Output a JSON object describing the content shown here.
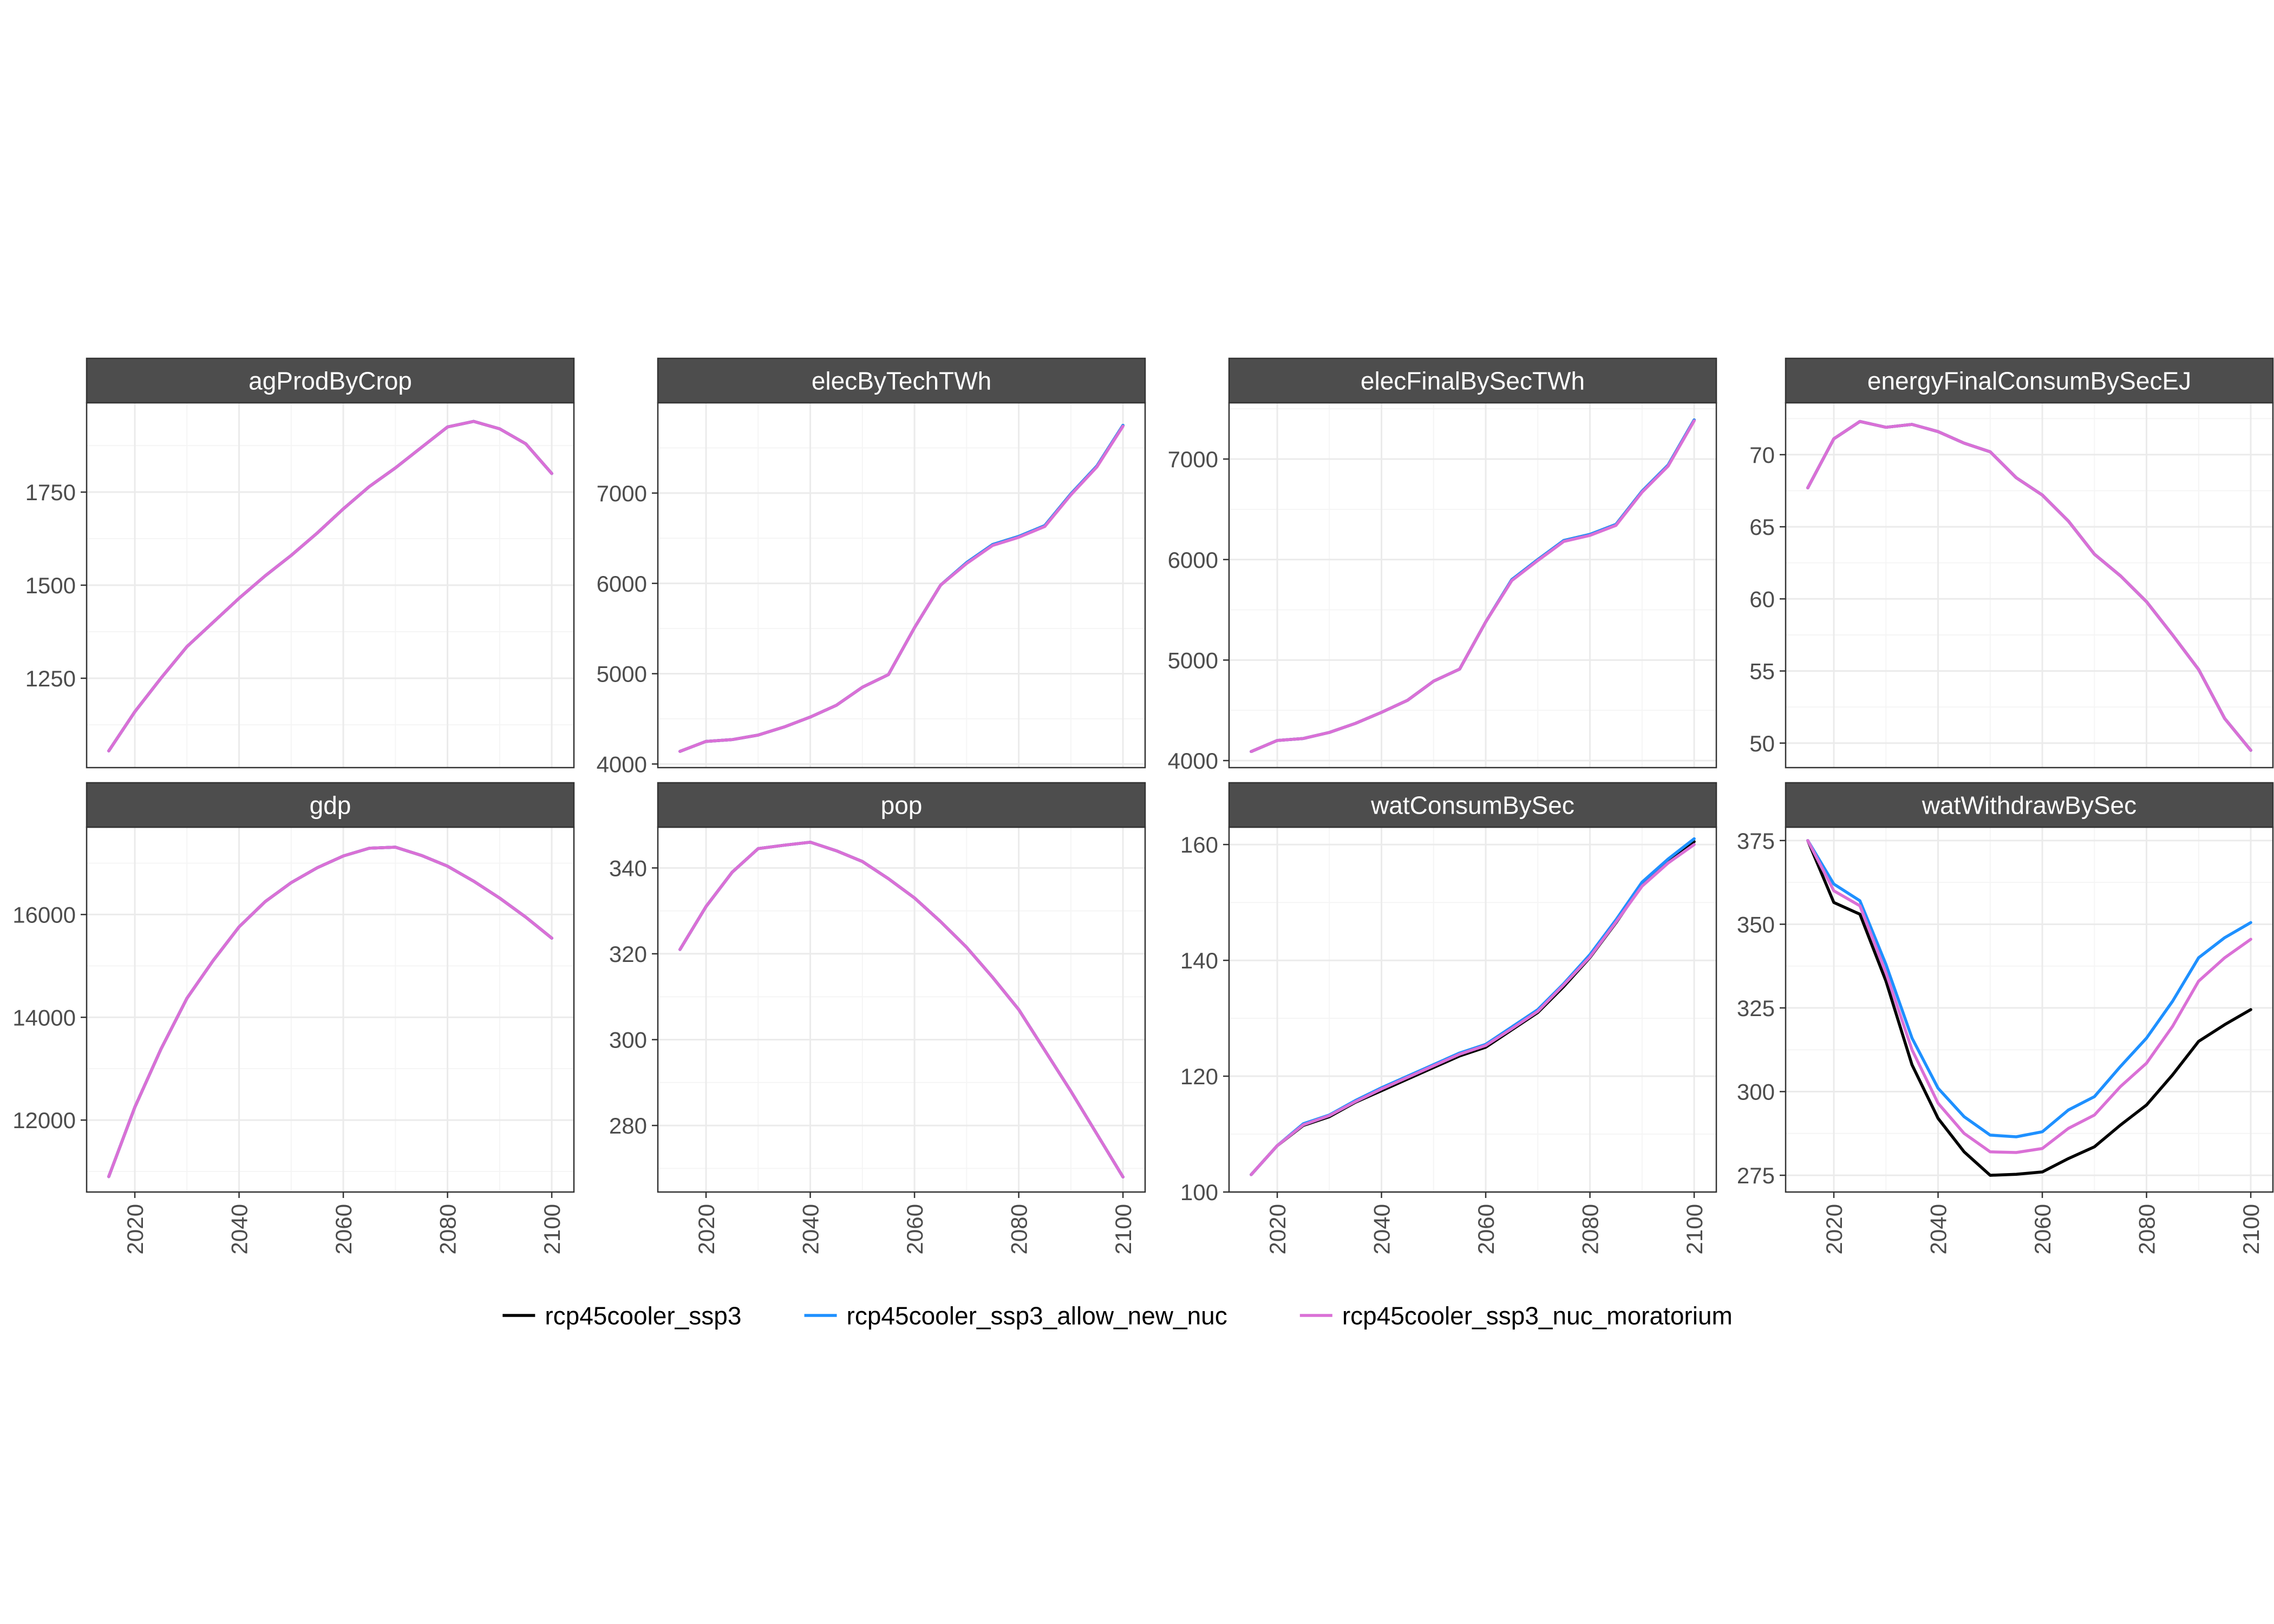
{
  "colors": {
    "strip_bg": "#4d4d4d",
    "strip_text": "#ffffff",
    "panel_border": "#333333",
    "grid_major": "#ebebeb",
    "grid_minor": "#f5f5f5",
    "tick_text": "#4d4d4d",
    "legend_text": "#000000"
  },
  "legend": {
    "position": "bottom",
    "items": [
      {
        "label": "rcp45cooler_ssp3",
        "color": "#000000"
      },
      {
        "label": "rcp45cooler_ssp3_allow_new_nuc",
        "color": "#1e90ff"
      },
      {
        "label": "rcp45cooler_ssp3_nuc_moratorium",
        "color": "#da70d6"
      }
    ]
  },
  "chart_data": [
    {
      "type": "line",
      "title": "agProdByCrop",
      "x": [
        2015,
        2020,
        2025,
        2030,
        2035,
        2040,
        2045,
        2050,
        2055,
        2060,
        2065,
        2070,
        2075,
        2080,
        2085,
        2090,
        2095,
        2100
      ],
      "xlim": [
        2010.75,
        2104.25
      ],
      "xticks": [
        2020,
        2040,
        2060,
        2080,
        2100
      ],
      "ylim": [
        1010,
        1990
      ],
      "yticks": [
        1250,
        1500,
        1750
      ],
      "series": [
        {
          "name": "rcp45cooler_ssp3",
          "color": "#000000",
          "values": [
            1055,
            1160,
            1250,
            1335,
            1400,
            1465,
            1525,
            1580,
            1640,
            1705,
            1765,
            1815,
            1870,
            1925,
            1940,
            1920,
            1880,
            1800
          ]
        },
        {
          "name": "rcp45cooler_ssp3_allow_new_nuc",
          "color": "#1e90ff",
          "values": [
            1055,
            1160,
            1250,
            1335,
            1400,
            1465,
            1525,
            1580,
            1640,
            1705,
            1765,
            1815,
            1870,
            1925,
            1940,
            1920,
            1880,
            1800
          ]
        },
        {
          "name": "rcp45cooler_ssp3_nuc_moratorium",
          "color": "#da70d6",
          "values": [
            1055,
            1160,
            1250,
            1335,
            1400,
            1465,
            1525,
            1580,
            1640,
            1705,
            1765,
            1815,
            1870,
            1925,
            1940,
            1920,
            1880,
            1800
          ]
        }
      ]
    },
    {
      "type": "line",
      "title": "elecByTechTWh",
      "x": [
        2015,
        2020,
        2025,
        2030,
        2035,
        2040,
        2045,
        2050,
        2055,
        2060,
        2065,
        2070,
        2075,
        2080,
        2085,
        2090,
        2095,
        2100
      ],
      "xlim": [
        2010.75,
        2104.25
      ],
      "xticks": [
        2020,
        2040,
        2060,
        2080,
        2100
      ],
      "ylim": [
        3960,
        8000
      ],
      "yticks": [
        4000,
        5000,
        6000,
        7000
      ],
      "series": [
        {
          "name": "rcp45cooler_ssp3",
          "color": "#000000",
          "values": [
            4140,
            4250,
            4270,
            4320,
            4410,
            4520,
            4650,
            4850,
            4990,
            5510,
            5980,
            6230,
            6430,
            6520,
            6640,
            6990,
            7300,
            7750
          ]
        },
        {
          "name": "rcp45cooler_ssp3_allow_new_nuc",
          "color": "#1e90ff",
          "values": [
            4140,
            4250,
            4270,
            4320,
            4410,
            4520,
            4650,
            4850,
            4990,
            5510,
            5980,
            6230,
            6430,
            6520,
            6640,
            6990,
            7300,
            7750
          ]
        },
        {
          "name": "rcp45cooler_ssp3_nuc_moratorium",
          "color": "#da70d6",
          "values": [
            4140,
            4250,
            4270,
            4320,
            4410,
            4520,
            4650,
            4850,
            4990,
            5510,
            5980,
            6220,
            6420,
            6510,
            6630,
            6980,
            7290,
            7740
          ]
        }
      ]
    },
    {
      "type": "line",
      "title": "elecFinalBySecTWh",
      "x": [
        2015,
        2020,
        2025,
        2030,
        2035,
        2040,
        2045,
        2050,
        2055,
        2060,
        2065,
        2070,
        2075,
        2080,
        2085,
        2090,
        2095,
        2100
      ],
      "xlim": [
        2010.75,
        2104.25
      ],
      "xticks": [
        2020,
        2040,
        2060,
        2080,
        2100
      ],
      "ylim": [
        3930,
        7560
      ],
      "yticks": [
        4000,
        5000,
        6000,
        7000
      ],
      "series": [
        {
          "name": "rcp45cooler_ssp3",
          "color": "#000000",
          "values": [
            4090,
            4200,
            4220,
            4280,
            4370,
            4480,
            4600,
            4790,
            4910,
            5380,
            5800,
            6000,
            6190,
            6250,
            6350,
            6680,
            6940,
            7390
          ]
        },
        {
          "name": "rcp45cooler_ssp3_allow_new_nuc",
          "color": "#1e90ff",
          "values": [
            4090,
            4200,
            4220,
            4280,
            4370,
            4480,
            4600,
            4790,
            4910,
            5380,
            5800,
            6000,
            6190,
            6250,
            6350,
            6680,
            6940,
            7390
          ]
        },
        {
          "name": "rcp45cooler_ssp3_nuc_moratorium",
          "color": "#da70d6",
          "values": [
            4090,
            4200,
            4220,
            4280,
            4370,
            4480,
            4600,
            4790,
            4910,
            5380,
            5790,
            5990,
            6180,
            6240,
            6340,
            6670,
            6930,
            7380
          ]
        }
      ]
    },
    {
      "type": "line",
      "title": "energyFinalConsumBySecEJ",
      "x": [
        2015,
        2020,
        2025,
        2030,
        2035,
        2040,
        2045,
        2050,
        2055,
        2060,
        2065,
        2070,
        2075,
        2080,
        2085,
        2090,
        2095,
        2100
      ],
      "xlim": [
        2010.75,
        2104.25
      ],
      "xticks": [
        2020,
        2040,
        2060,
        2080,
        2100
      ],
      "ylim": [
        48.3,
        73.6
      ],
      "yticks": [
        50,
        55,
        60,
        65,
        70
      ],
      "series": [
        {
          "name": "rcp45cooler_ssp3",
          "color": "#000000",
          "values": [
            67.7,
            71.1,
            72.3,
            71.9,
            72.1,
            71.6,
            70.8,
            70.2,
            68.4,
            67.2,
            65.4,
            63.1,
            61.6,
            59.8,
            57.5,
            55.1,
            51.7,
            49.5
          ]
        },
        {
          "name": "rcp45cooler_ssp3_allow_new_nuc",
          "color": "#1e90ff",
          "values": [
            67.7,
            71.1,
            72.3,
            71.9,
            72.1,
            71.6,
            70.8,
            70.2,
            68.4,
            67.2,
            65.4,
            63.1,
            61.6,
            59.8,
            57.5,
            55.1,
            51.7,
            49.5
          ]
        },
        {
          "name": "rcp45cooler_ssp3_nuc_moratorium",
          "color": "#da70d6",
          "values": [
            67.7,
            71.1,
            72.3,
            71.9,
            72.1,
            71.6,
            70.8,
            70.2,
            68.4,
            67.2,
            65.4,
            63.1,
            61.6,
            59.8,
            57.5,
            55.1,
            51.7,
            49.5
          ]
        }
      ]
    },
    {
      "type": "line",
      "title": "gdp",
      "x": [
        2015,
        2020,
        2025,
        2030,
        2035,
        2040,
        2045,
        2050,
        2055,
        2060,
        2065,
        2070,
        2075,
        2080,
        2085,
        2090,
        2095,
        2100
      ],
      "xlim": [
        2010.75,
        2104.25
      ],
      "xticks": [
        2020,
        2040,
        2060,
        2080,
        2100
      ],
      "ylim": [
        10600,
        17700
      ],
      "yticks": [
        12000,
        14000,
        16000
      ],
      "series": [
        {
          "name": "rcp45cooler_ssp3",
          "color": "#000000",
          "values": [
            10900,
            12250,
            13380,
            14370,
            15100,
            15760,
            16250,
            16620,
            16910,
            17140,
            17290,
            17310,
            17150,
            16940,
            16650,
            16320,
            15950,
            15540
          ]
        },
        {
          "name": "rcp45cooler_ssp3_allow_new_nuc",
          "color": "#1e90ff",
          "values": [
            10900,
            12250,
            13380,
            14370,
            15100,
            15760,
            16250,
            16620,
            16910,
            17140,
            17290,
            17310,
            17150,
            16940,
            16650,
            16320,
            15950,
            15540
          ]
        },
        {
          "name": "rcp45cooler_ssp3_nuc_moratorium",
          "color": "#da70d6",
          "values": [
            10900,
            12250,
            13380,
            14370,
            15100,
            15760,
            16250,
            16620,
            16910,
            17140,
            17290,
            17310,
            17150,
            16940,
            16650,
            16320,
            15950,
            15540
          ]
        }
      ]
    },
    {
      "type": "line",
      "title": "pop",
      "x": [
        2015,
        2020,
        2025,
        2030,
        2035,
        2040,
        2045,
        2050,
        2055,
        2060,
        2065,
        2070,
        2075,
        2080,
        2085,
        2090,
        2095,
        2100
      ],
      "xlim": [
        2010.75,
        2104.25
      ],
      "xticks": [
        2020,
        2040,
        2060,
        2080,
        2100
      ],
      "ylim": [
        264.5,
        349.5
      ],
      "yticks": [
        280,
        300,
        320,
        340
      ],
      "series": [
        {
          "name": "rcp45cooler_ssp3",
          "color": "#000000",
          "values": [
            321,
            331,
            339,
            344.5,
            345.3,
            346,
            344,
            341.5,
            337.5,
            333,
            327.5,
            321.5,
            314.5,
            307,
            297.5,
            288,
            278,
            268
          ]
        },
        {
          "name": "rcp45cooler_ssp3_allow_new_nuc",
          "color": "#1e90ff",
          "values": [
            321,
            331,
            339,
            344.5,
            345.3,
            346,
            344,
            341.5,
            337.5,
            333,
            327.5,
            321.5,
            314.5,
            307,
            297.5,
            288,
            278,
            268
          ]
        },
        {
          "name": "rcp45cooler_ssp3_nuc_moratorium",
          "color": "#da70d6",
          "values": [
            321,
            331,
            339,
            344.5,
            345.3,
            346,
            344,
            341.5,
            337.5,
            333,
            327.5,
            321.5,
            314.5,
            307,
            297.5,
            288,
            278,
            268
          ]
        }
      ]
    },
    {
      "type": "line",
      "title": "watConsumBySec",
      "x": [
        2015,
        2020,
        2025,
        2030,
        2035,
        2040,
        2045,
        2050,
        2055,
        2060,
        2065,
        2070,
        2075,
        2080,
        2085,
        2090,
        2095,
        2100
      ],
      "xlim": [
        2010.75,
        2104.25
      ],
      "xticks": [
        2020,
        2040,
        2060,
        2080,
        2100
      ],
      "ylim": [
        100,
        163
      ],
      "yticks": [
        100,
        120,
        140,
        160
      ],
      "series": [
        {
          "name": "rcp45cooler_ssp3",
          "color": "#000000",
          "values": [
            103,
            108,
            111.5,
            113,
            115.5,
            117.5,
            119.5,
            121.5,
            123.5,
            125,
            128,
            131,
            135.5,
            140.5,
            146.5,
            153,
            157,
            160.5
          ]
        },
        {
          "name": "rcp45cooler_ssp3_allow_new_nuc",
          "color": "#1e90ff",
          "values": [
            103,
            108,
            111.8,
            113.3,
            115.8,
            118,
            120,
            122,
            124,
            125.5,
            128.5,
            131.5,
            136,
            141,
            147,
            153.5,
            157.5,
            161
          ]
        },
        {
          "name": "rcp45cooler_ssp3_nuc_moratorium",
          "color": "#da70d6",
          "values": [
            103,
            108,
            111.6,
            113.2,
            115.6,
            117.8,
            119.8,
            121.8,
            123.8,
            125.3,
            128.2,
            131.2,
            135.8,
            140.6,
            146.6,
            152.8,
            156.8,
            160
          ]
        }
      ]
    },
    {
      "type": "line",
      "title": "watWithdrawBySec",
      "x": [
        2015,
        2020,
        2025,
        2030,
        2035,
        2040,
        2045,
        2050,
        2055,
        2060,
        2065,
        2070,
        2075,
        2080,
        2085,
        2090,
        2095,
        2100
      ],
      "xlim": [
        2010.75,
        2104.25
      ],
      "xticks": [
        2020,
        2040,
        2060,
        2080,
        2100
      ],
      "ylim": [
        270,
        379
      ],
      "yticks": [
        275,
        300,
        325,
        350,
        375
      ],
      "series": [
        {
          "name": "rcp45cooler_ssp3",
          "color": "#000000",
          "values": [
            375,
            356.5,
            353,
            333,
            308,
            292,
            282,
            275,
            275.3,
            276,
            280,
            283.5,
            290,
            296,
            305,
            315,
            320,
            324.5
          ]
        },
        {
          "name": "rcp45cooler_ssp3_allow_new_nuc",
          "color": "#1e90ff",
          "values": [
            375,
            362,
            357,
            338,
            316,
            301,
            292.5,
            287,
            286.5,
            288,
            294.5,
            298.5,
            307.5,
            316,
            327,
            340,
            346,
            350.5
          ]
        },
        {
          "name": "rcp45cooler_ssp3_nuc_moratorium",
          "color": "#da70d6",
          "values": [
            375,
            360,
            355.5,
            335.5,
            312.5,
            296.5,
            287.5,
            282,
            281.8,
            283,
            289,
            293,
            301.5,
            308.5,
            319.5,
            333,
            340,
            345.5
          ]
        }
      ]
    }
  ]
}
